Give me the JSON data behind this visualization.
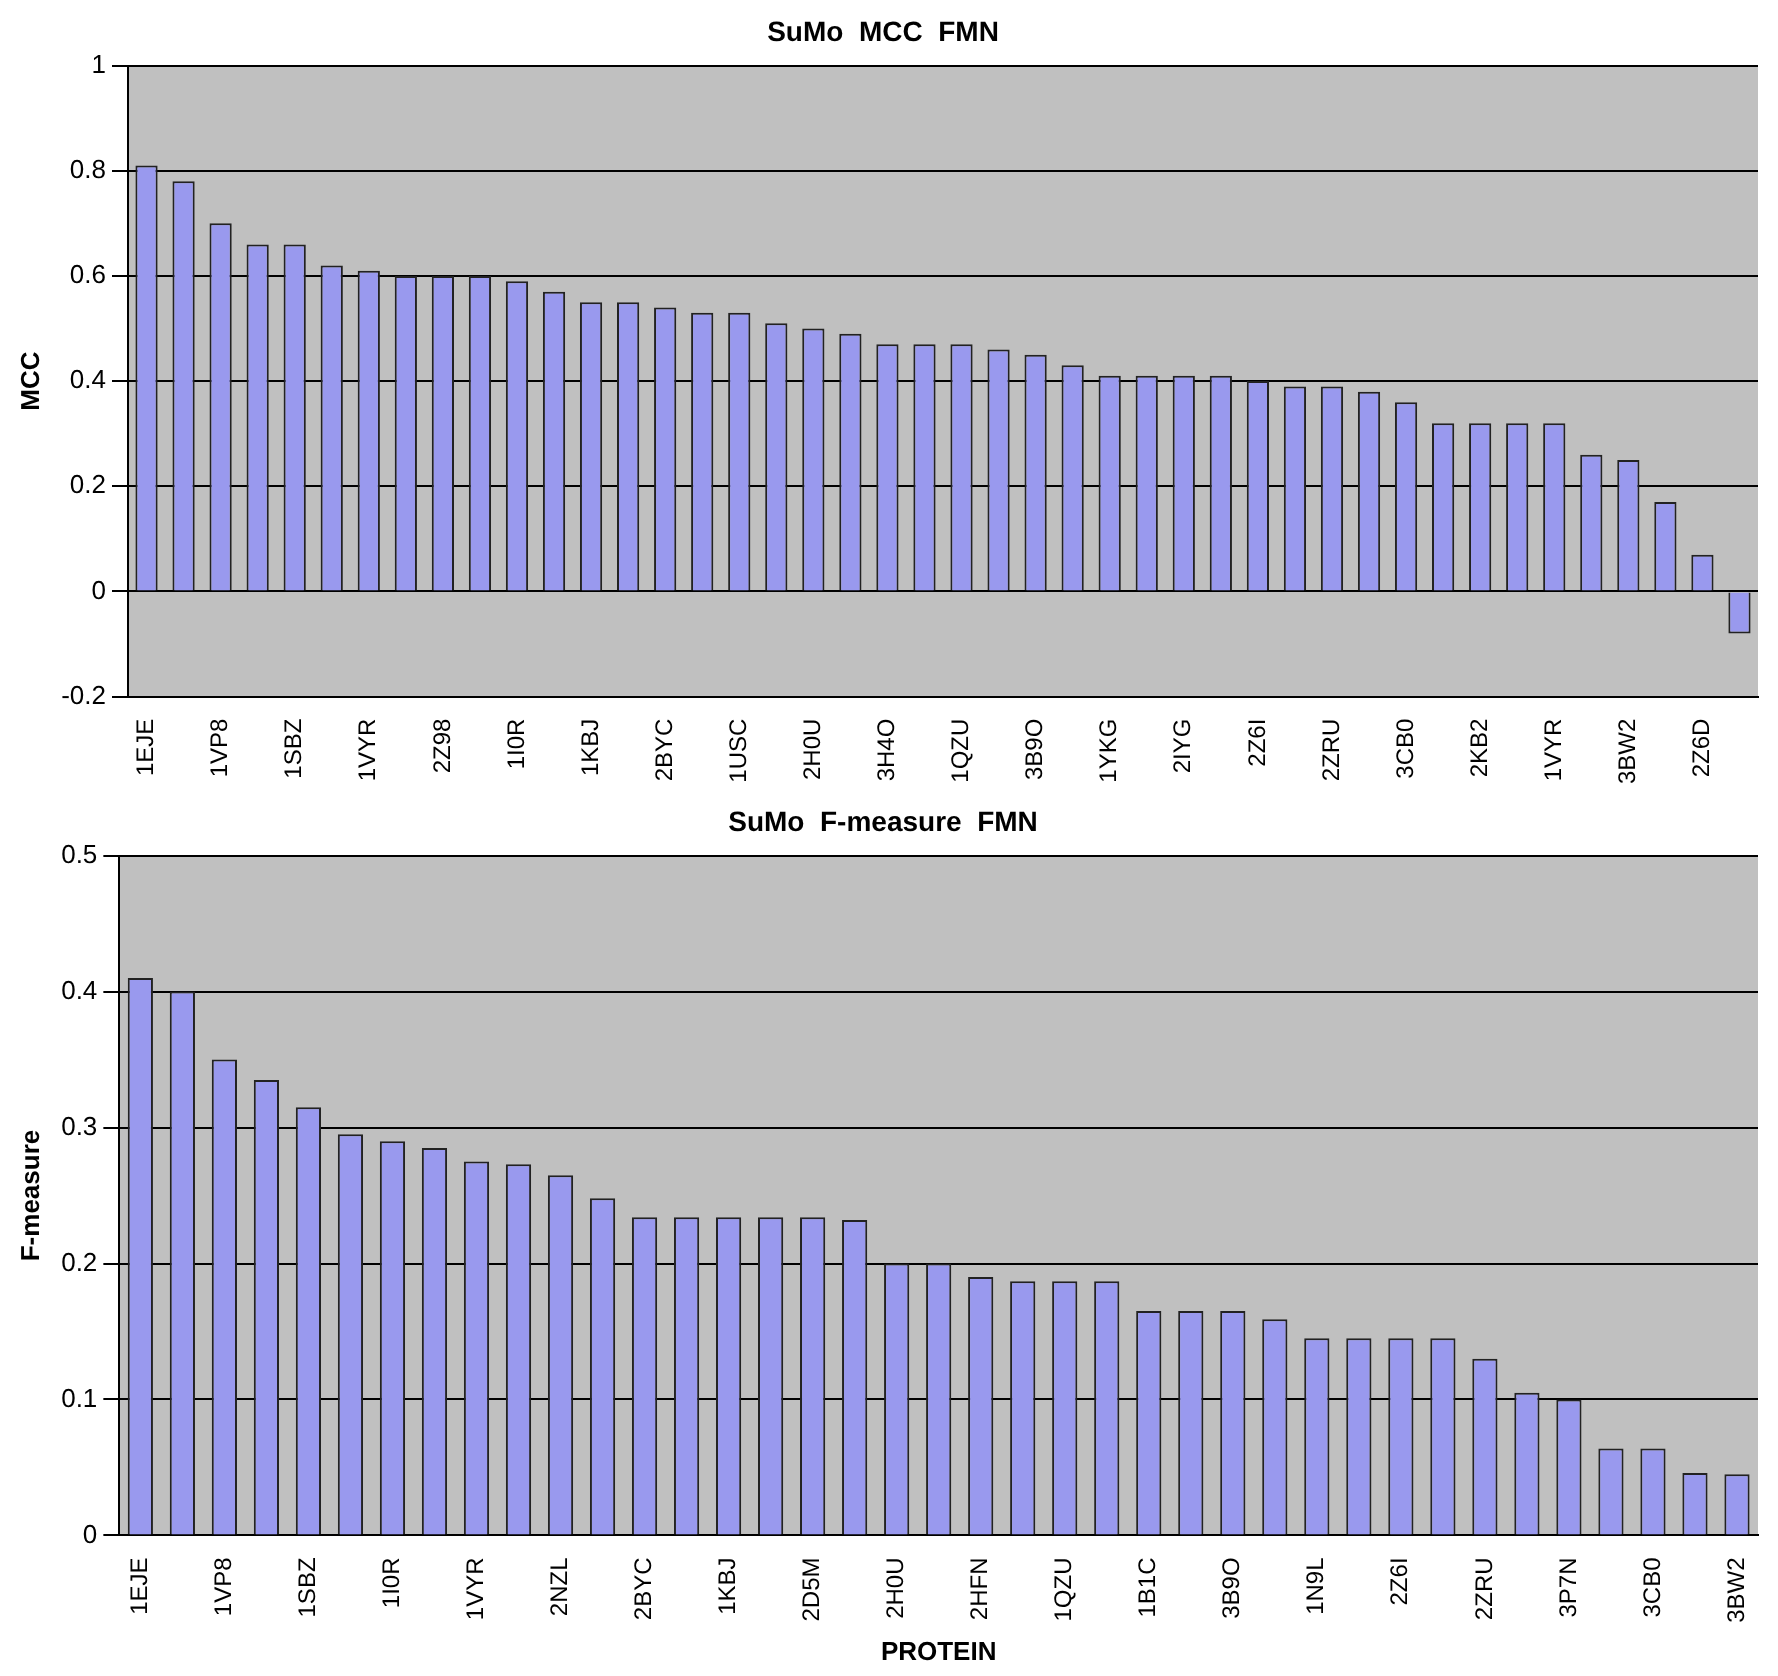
{
  "chart_data": [
    {
      "type": "bar",
      "title": "SuMo  MCC  FMN",
      "ylabel": "MCC",
      "categories": [
        "1EJE",
        null,
        "1VP8",
        null,
        "1SBZ",
        null,
        "1VYR",
        null,
        "2Z98",
        null,
        "1I0R",
        null,
        "1KBJ",
        null,
        "2BYC",
        null,
        "1USC",
        null,
        "2H0U",
        null,
        "3H4O",
        null,
        "1QZU",
        null,
        "3B9O",
        null,
        "1YKG",
        null,
        "2IYG",
        null,
        "2Z6I",
        null,
        "2ZRU",
        null,
        "3CB0",
        null,
        "2KB2",
        null,
        "1VYR",
        null,
        "3BW2",
        null,
        "2Z6D",
        null
      ],
      "values": [
        0.81,
        0.78,
        0.7,
        0.66,
        0.66,
        0.62,
        0.61,
        0.6,
        0.6,
        0.6,
        0.59,
        0.57,
        0.55,
        0.55,
        0.54,
        0.53,
        0.53,
        0.51,
        0.5,
        0.49,
        0.47,
        0.47,
        0.47,
        0.46,
        0.45,
        0.43,
        0.41,
        0.41,
        0.41,
        0.41,
        0.4,
        0.39,
        0.39,
        0.38,
        0.36,
        0.32,
        0.32,
        0.32,
        0.32,
        0.26,
        0.25,
        0.17,
        0.07,
        -0.08
      ],
      "color": "#9999ee",
      "ylim": [
        -0.2,
        1
      ],
      "yticks": [
        -0.2,
        0,
        0.2,
        0.4,
        0.6,
        0.8,
        1
      ],
      "grid": "y",
      "legend": false
    },
    {
      "type": "bar",
      "title": "SuMo  F-measure  FMN",
      "ylabel": "F-measure",
      "xlabel": "PROTEIN",
      "categories": [
        "1EJE",
        null,
        "1VP8",
        null,
        "1SBZ",
        null,
        "1I0R",
        null,
        "1VYR",
        null,
        "2NZL",
        null,
        "2BYC",
        null,
        "1KBJ",
        null,
        "2D5M",
        null,
        "2H0U",
        null,
        "2HFN",
        null,
        "1QZU",
        null,
        "1B1C",
        null,
        "3B9O",
        null,
        "1N9L",
        null,
        "2Z6I",
        null,
        "2ZRU",
        null,
        "3P7N",
        null,
        "3CB0",
        null,
        "3BW2"
      ],
      "values": [
        0.41,
        0.4,
        0.35,
        0.335,
        0.315,
        0.295,
        0.29,
        0.285,
        0.275,
        0.273,
        0.265,
        0.248,
        0.234,
        0.234,
        0.234,
        0.234,
        0.234,
        0.232,
        0.2,
        0.2,
        0.19,
        0.187,
        0.187,
        0.187,
        0.165,
        0.165,
        0.165,
        0.159,
        0.145,
        0.145,
        0.145,
        0.145,
        0.13,
        0.105,
        0.1,
        0.064,
        0.064,
        0.046,
        0.045
      ],
      "color": "#9999ee",
      "ylim": [
        0,
        0.5
      ],
      "yticks": [
        0,
        0.1,
        0.2,
        0.3,
        0.4,
        0.5
      ],
      "grid": "y",
      "legend": false
    }
  ]
}
